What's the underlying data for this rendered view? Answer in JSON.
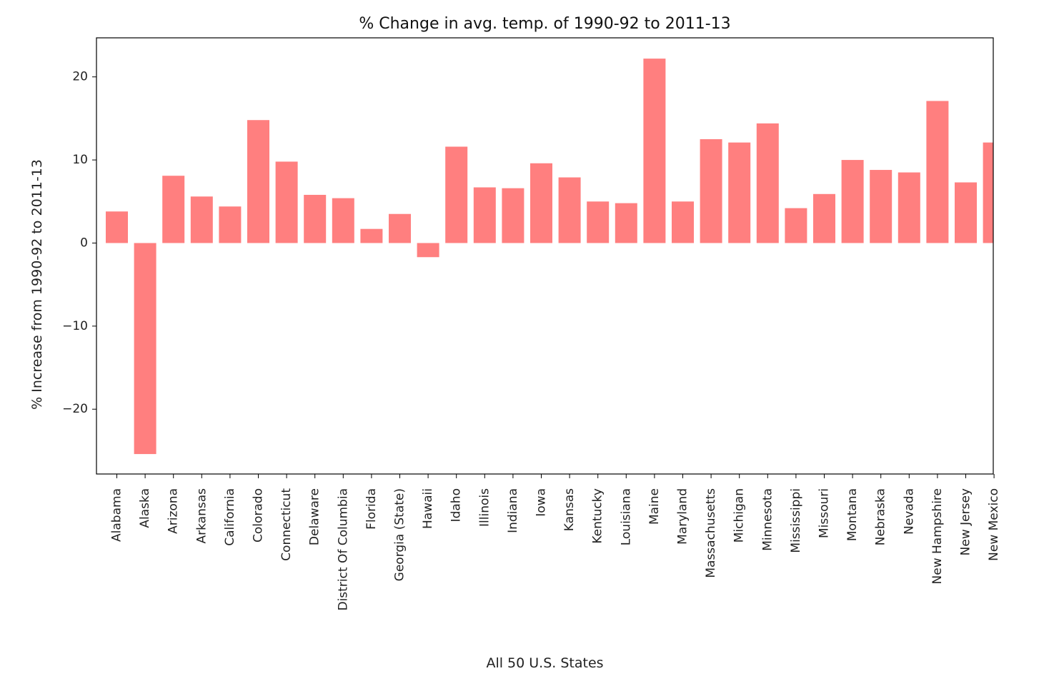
{
  "chart_data": {
    "type": "bar",
    "title": "% Change in avg. temp. of 1990-92 to 2011-13",
    "xlabel": "All 50 U.S. States",
    "ylabel": "% Increase from 1990-92 to 2011-13",
    "ylim": [
      -27.8,
      24.7
    ],
    "yticks": [
      -20,
      -10,
      0,
      10,
      20
    ],
    "grid": false,
    "legend": "none",
    "bar_color": "#ff7f7f",
    "categories": [
      "Alabama",
      "Alaska",
      "Arizona",
      "Arkansas",
      "California",
      "Colorado",
      "Connecticut",
      "Delaware",
      "District Of Columbia",
      "Florida",
      "Georgia (State)",
      "Hawaii",
      "Idaho",
      "Illinois",
      "Indiana",
      "Iowa",
      "Kansas",
      "Kentucky",
      "Louisiana",
      "Maine",
      "Maryland",
      "Massachusetts",
      "Michigan",
      "Minnesota",
      "Mississippi",
      "Missouri",
      "Montana",
      "Nebraska",
      "Nevada",
      "New Hampshire",
      "New Jersey",
      "New Mexico"
    ],
    "values": [
      3.8,
      -25.4,
      8.1,
      5.6,
      4.4,
      14.8,
      9.8,
      5.8,
      5.4,
      1.7,
      3.5,
      -1.7,
      11.6,
      6.7,
      6.6,
      9.6,
      7.9,
      5.0,
      4.8,
      22.2,
      5.0,
      12.5,
      12.1,
      14.4,
      4.2,
      5.9,
      10.0,
      8.8,
      8.5,
      17.1,
      7.3,
      12.1
    ]
  }
}
